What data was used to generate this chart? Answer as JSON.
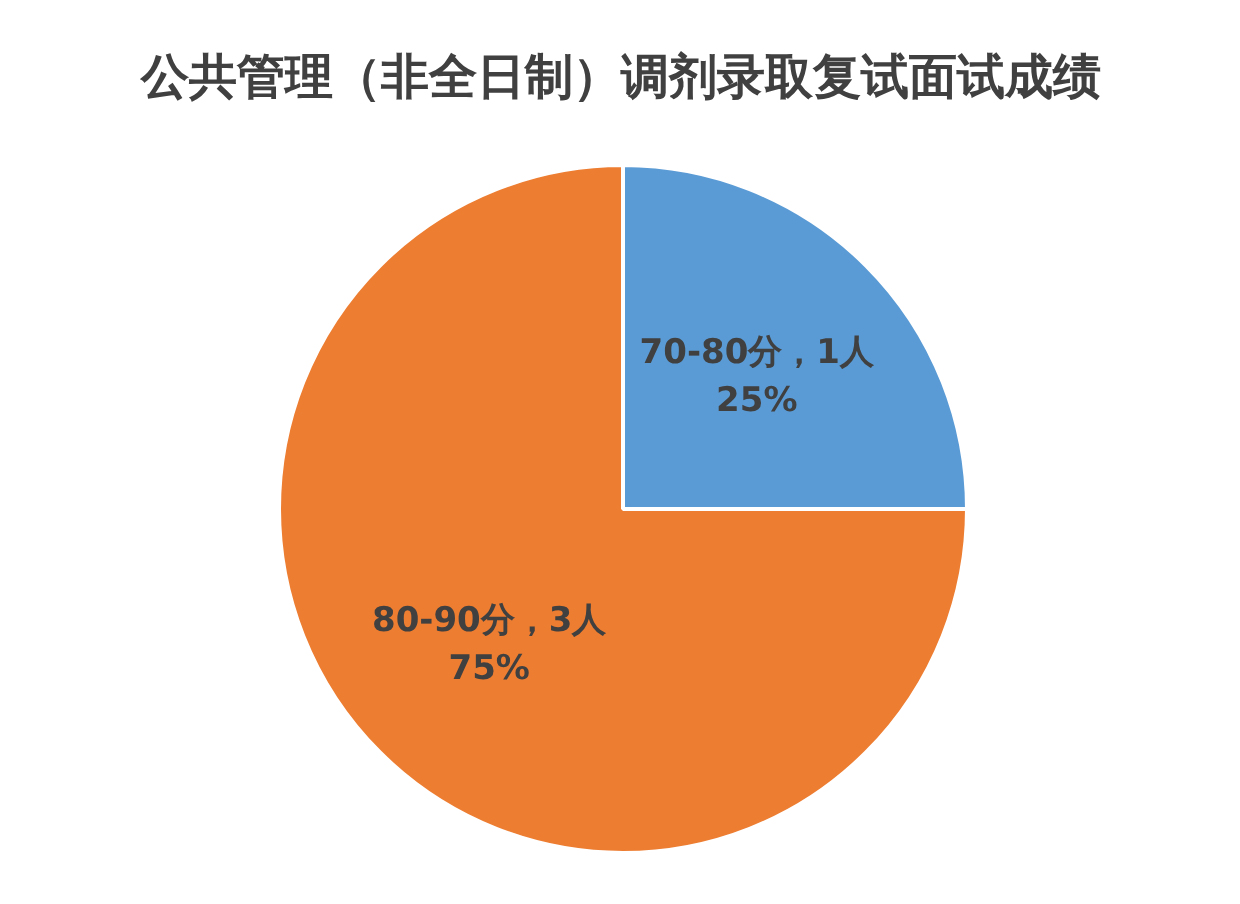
{
  "chart_data": {
    "type": "pie",
    "title": "公共管理（非全日制）调剂录取复试面试成绩",
    "categories": [
      "70-80分，1人",
      "80-90分，3人"
    ],
    "values": [
      25,
      75
    ],
    "colors": [
      "#5b9bd5",
      "#ed7d31"
    ],
    "value_labels": [
      "25%",
      "75%"
    ],
    "legend": false
  }
}
